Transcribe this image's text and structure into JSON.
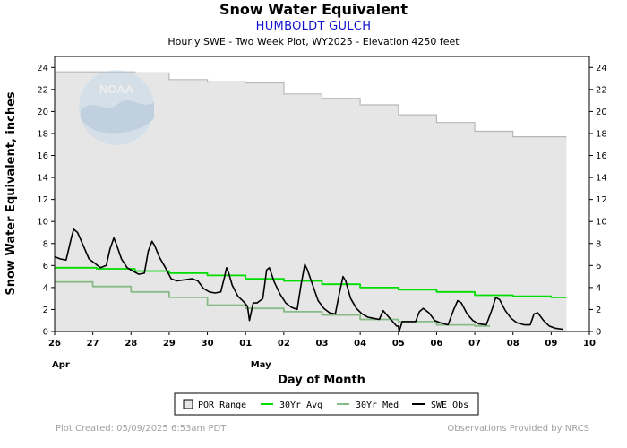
{
  "chart_data": {
    "type": "line",
    "title": "Snow Water Equivalent",
    "subtitle": "HUMBOLDT GULCH",
    "subtitle2": "Hourly SWE - Two Week Plot, WY2025 -  Elevation 4250 feet",
    "xlabel": "Day of Month",
    "ylabel": "Snow Water Equivalent, inches",
    "ylim": [
      0,
      25
    ],
    "xlim": [
      26,
      40
    ],
    "yticks": [
      0,
      2,
      4,
      6,
      8,
      10,
      12,
      14,
      16,
      18,
      20,
      22,
      24
    ],
    "xtick_labels": [
      "26",
      "27",
      "28",
      "29",
      "30",
      "01",
      "02",
      "03",
      "04",
      "05",
      "06",
      "07",
      "08",
      "09",
      "10"
    ],
    "month_labels": [
      {
        "text": "Apr",
        "x": 26
      },
      {
        "text": "May",
        "x": 31.2
      }
    ],
    "grid": false,
    "legend_position": "bottom",
    "series": [
      {
        "name": "POR Range",
        "kind": "band",
        "color": "#e6e6e6",
        "x": [
          26,
          28.1,
          28.1,
          29,
          29,
          30,
          30,
          31,
          31,
          32,
          32,
          33,
          33,
          34,
          34,
          35,
          35,
          36,
          36,
          37,
          37,
          38,
          38,
          39.4
        ],
        "upper": [
          23.6,
          23.6,
          23.5,
          23.5,
          22.9,
          22.9,
          22.7,
          22.7,
          22.6,
          22.6,
          21.6,
          21.6,
          21.2,
          21.2,
          20.6,
          20.6,
          19.7,
          19.7,
          19.0,
          19.0,
          18.2,
          18.2,
          17.7,
          17.7
        ],
        "lower": [
          0,
          0,
          0,
          0,
          0,
          0,
          0,
          0,
          0,
          0,
          0,
          0,
          0,
          0,
          0,
          0,
          0,
          0,
          0,
          0,
          0,
          0,
          0,
          0
        ]
      },
      {
        "name": "30Yr Avg",
        "kind": "line",
        "color": "#00dd00",
        "x": [
          26,
          27.1,
          27.1,
          28.1,
          28.1,
          29,
          29,
          30,
          30,
          31,
          31,
          32,
          32,
          33,
          33,
          34,
          34,
          35,
          35,
          36,
          36,
          37,
          37,
          38,
          38,
          39,
          39,
          39.4
        ],
        "values": [
          5.8,
          5.8,
          5.7,
          5.7,
          5.5,
          5.5,
          5.3,
          5.3,
          5.1,
          5.1,
          4.8,
          4.8,
          4.6,
          4.6,
          4.3,
          4.3,
          4.0,
          4.0,
          3.8,
          3.8,
          3.6,
          3.6,
          3.3,
          3.3,
          3.2,
          3.2,
          3.1,
          3.1
        ]
      },
      {
        "name": "30Yr Med",
        "kind": "line",
        "color": "#88bb88",
        "x": [
          26,
          27,
          27,
          28,
          28,
          29,
          29,
          30,
          30,
          31,
          31,
          32,
          32,
          33,
          33,
          34,
          34,
          35,
          35,
          36,
          36,
          37,
          37,
          37.4
        ],
        "values": [
          4.5,
          4.5,
          4.1,
          4.1,
          3.6,
          3.6,
          3.1,
          3.1,
          2.4,
          2.4,
          2.1,
          2.1,
          1.8,
          1.8,
          1.5,
          1.5,
          1.1,
          1.1,
          0.9,
          0.9,
          0.6,
          0.6,
          0.5,
          0.5
        ]
      },
      {
        "name": "SWE Obs",
        "kind": "line",
        "color": "#000000",
        "x": [
          26,
          26.15,
          26.3,
          26.45,
          26.5,
          26.6,
          26.75,
          26.9,
          27.05,
          27.2,
          27.35,
          27.45,
          27.55,
          27.62,
          27.75,
          27.9,
          28.05,
          28.2,
          28.35,
          28.45,
          28.55,
          28.62,
          28.75,
          28.9,
          29.05,
          29.2,
          29.4,
          29.6,
          29.75,
          29.9,
          30.05,
          30.2,
          30.35,
          30.45,
          30.5,
          30.55,
          30.65,
          30.8,
          30.95,
          31.05,
          31.1,
          31.2,
          31.3,
          31.45,
          31.55,
          31.62,
          31.75,
          31.9,
          32.05,
          32.2,
          32.35,
          32.45,
          32.55,
          32.62,
          32.75,
          32.9,
          33.05,
          33.2,
          33.35,
          33.45,
          33.55,
          33.62,
          33.75,
          33.9,
          34.05,
          34.2,
          34.35,
          34.5,
          34.6,
          34.75,
          34.85,
          34.95,
          35.0,
          35.02,
          35.1,
          35.3,
          35.45,
          35.55,
          35.65,
          35.8,
          35.95,
          36.1,
          36.3,
          36.45,
          36.55,
          36.65,
          36.8,
          36.95,
          37.1,
          37.3,
          37.45,
          37.55,
          37.65,
          37.8,
          37.95,
          38.1,
          38.3,
          38.45,
          38.55,
          38.65,
          38.8,
          38.95,
          39.1,
          39.3
        ],
        "values": [
          6.8,
          6.6,
          6.5,
          8.7,
          9.3,
          9.0,
          7.8,
          6.6,
          6.2,
          5.8,
          6.0,
          7.5,
          8.5,
          7.9,
          6.6,
          5.8,
          5.5,
          5.2,
          5.3,
          7.3,
          8.2,
          7.8,
          6.7,
          5.8,
          4.8,
          4.6,
          4.7,
          4.8,
          4.6,
          3.9,
          3.6,
          3.5,
          3.6,
          5.0,
          5.8,
          5.4,
          4.2,
          3.2,
          2.7,
          2.3,
          1.0,
          2.6,
          2.6,
          3.0,
          5.6,
          5.8,
          4.5,
          3.4,
          2.6,
          2.2,
          2.0,
          4.2,
          6.1,
          5.6,
          4.3,
          2.8,
          2.1,
          1.7,
          1.6,
          3.4,
          5.0,
          4.6,
          3.0,
          2.1,
          1.6,
          1.3,
          1.2,
          1.1,
          1.9,
          1.3,
          0.9,
          0.5,
          0.5,
          0.0,
          0.9,
          0.9,
          0.9,
          1.8,
          2.1,
          1.7,
          1.0,
          0.8,
          0.6,
          2.0,
          2.8,
          2.6,
          1.6,
          1.0,
          0.7,
          0.6,
          2.0,
          3.1,
          2.9,
          1.9,
          1.2,
          0.8,
          0.6,
          0.6,
          1.6,
          1.7,
          1.0,
          0.5,
          0.3,
          0.2
        ]
      }
    ]
  },
  "legend": {
    "items": [
      {
        "label": "POR Range"
      },
      {
        "label": "30Yr Avg"
      },
      {
        "label": "30Yr Med"
      },
      {
        "label": "SWE Obs"
      }
    ]
  },
  "footer": {
    "left": "Plot Created: 05/09/2025 6:53am PDT",
    "right": "Observations Provided by NRCS"
  },
  "logo": {
    "text": "NOAA"
  }
}
